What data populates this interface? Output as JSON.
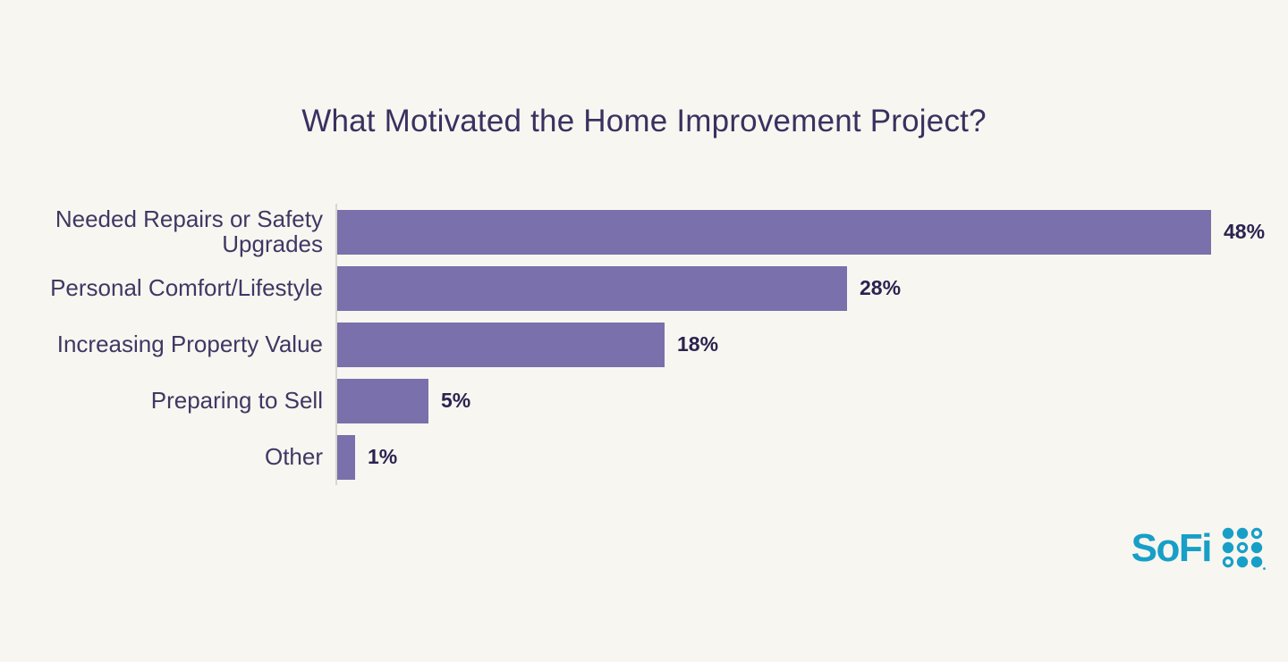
{
  "chart_data": {
    "type": "bar",
    "orientation": "horizontal",
    "title": "What Motivated the Home Improvement Project?",
    "categories": [
      "Needed Repairs or Safety Upgrades",
      "Personal Comfort/Lifestyle",
      "Increasing Property Value",
      "Preparing to Sell",
      "Other"
    ],
    "values": [
      48,
      28,
      18,
      5,
      1
    ],
    "value_labels": [
      "48%",
      "28%",
      "18%",
      "5%",
      "1%"
    ],
    "unit": "%",
    "xlim": [
      0,
      50
    ],
    "xlabel": "",
    "ylabel": "",
    "gridlines": false,
    "legend": false,
    "bar_color": "#7a70ab",
    "background_color": "#f8f6f0",
    "axis_line_color": "#d9d6cf",
    "title_color": "#393160",
    "category_label_color": "#3f3864",
    "value_label_color": "#2a2350"
  },
  "branding": {
    "logo_text": "SoFi",
    "logo_color": "#189fc7",
    "logo_icon": "sofi-dot-grid-icon"
  }
}
